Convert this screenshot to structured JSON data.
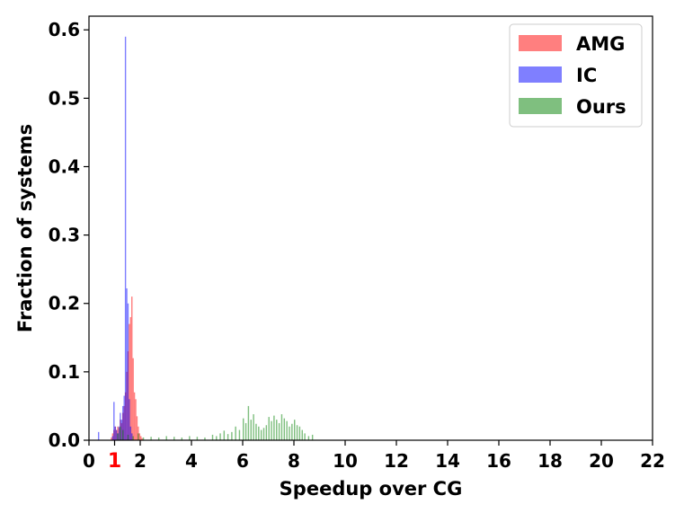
{
  "chart_data": {
    "type": "histogram",
    "title": "",
    "xlabel": "Speedup over CG",
    "ylabel": "Fraction of systems",
    "xlim": [
      0,
      22
    ],
    "ylim": [
      0,
      0.62
    ],
    "x_ticks": [
      "0",
      "1",
      "2",
      "4",
      "6",
      "8",
      "10",
      "12",
      "14",
      "16",
      "18",
      "20",
      "22"
    ],
    "highlight_tick": {
      "label": "1",
      "color": "#ff0000"
    },
    "y_ticks": [
      "0.0",
      "0.1",
      "0.2",
      "0.3",
      "0.4",
      "0.5",
      "0.6"
    ],
    "grid": false,
    "legend_position": "top-right",
    "series": [
      {
        "name": "AMG",
        "color": "#ff0000",
        "bins": [
          {
            "x": 0.85,
            "y": 0.004
          },
          {
            "x": 0.9,
            "y": 0.01
          },
          {
            "x": 0.95,
            "y": 0.015
          },
          {
            "x": 1.0,
            "y": 0.02
          },
          {
            "x": 1.05,
            "y": 0.015
          },
          {
            "x": 1.1,
            "y": 0.02
          },
          {
            "x": 1.15,
            "y": 0.018
          },
          {
            "x": 1.2,
            "y": 0.03
          },
          {
            "x": 1.25,
            "y": 0.025
          },
          {
            "x": 1.3,
            "y": 0.04
          },
          {
            "x": 1.35,
            "y": 0.05
          },
          {
            "x": 1.4,
            "y": 0.07
          },
          {
            "x": 1.45,
            "y": 0.1
          },
          {
            "x": 1.5,
            "y": 0.13
          },
          {
            "x": 1.55,
            "y": 0.17
          },
          {
            "x": 1.6,
            "y": 0.18
          },
          {
            "x": 1.65,
            "y": 0.21
          },
          {
            "x": 1.7,
            "y": 0.12
          },
          {
            "x": 1.75,
            "y": 0.07
          },
          {
            "x": 1.8,
            "y": 0.06
          },
          {
            "x": 1.85,
            "y": 0.035
          },
          {
            "x": 1.9,
            "y": 0.02
          },
          {
            "x": 1.95,
            "y": 0.01
          },
          {
            "x": 2.0,
            "y": 0.006
          },
          {
            "x": 2.05,
            "y": 0.003
          }
        ]
      },
      {
        "name": "IC",
        "color": "#0000ff",
        "bins": [
          {
            "x": 0.35,
            "y": 0.012
          },
          {
            "x": 0.9,
            "y": 0.006
          },
          {
            "x": 0.95,
            "y": 0.056
          },
          {
            "x": 1.0,
            "y": 0.02
          },
          {
            "x": 1.05,
            "y": 0.015
          },
          {
            "x": 1.1,
            "y": 0.01
          },
          {
            "x": 1.15,
            "y": 0.02
          },
          {
            "x": 1.2,
            "y": 0.04
          },
          {
            "x": 1.25,
            "y": 0.03
          },
          {
            "x": 1.3,
            "y": 0.05
          },
          {
            "x": 1.35,
            "y": 0.065
          },
          {
            "x": 1.4,
            "y": 0.59
          },
          {
            "x": 1.45,
            "y": 0.222
          },
          {
            "x": 1.5,
            "y": 0.2
          },
          {
            "x": 1.55,
            "y": 0.06
          },
          {
            "x": 1.6,
            "y": 0.02
          },
          {
            "x": 1.65,
            "y": 0.01
          }
        ]
      },
      {
        "name": "Ours",
        "color": "#008000",
        "bins": [
          {
            "x": 1.1,
            "y": 0.01
          },
          {
            "x": 1.2,
            "y": 0.02
          },
          {
            "x": 1.3,
            "y": 0.015
          },
          {
            "x": 1.5,
            "y": 0.008
          },
          {
            "x": 1.7,
            "y": 0.006
          },
          {
            "x": 1.9,
            "y": 0.01
          },
          {
            "x": 2.1,
            "y": 0.004
          },
          {
            "x": 2.4,
            "y": 0.005
          },
          {
            "x": 2.7,
            "y": 0.004
          },
          {
            "x": 3.0,
            "y": 0.006
          },
          {
            "x": 3.3,
            "y": 0.005
          },
          {
            "x": 3.6,
            "y": 0.004
          },
          {
            "x": 3.9,
            "y": 0.006
          },
          {
            "x": 4.2,
            "y": 0.005
          },
          {
            "x": 4.5,
            "y": 0.004
          },
          {
            "x": 4.8,
            "y": 0.008
          },
          {
            "x": 4.95,
            "y": 0.006
          },
          {
            "x": 5.1,
            "y": 0.01
          },
          {
            "x": 5.25,
            "y": 0.014
          },
          {
            "x": 5.4,
            "y": 0.009
          },
          {
            "x": 5.55,
            "y": 0.012
          },
          {
            "x": 5.7,
            "y": 0.02
          },
          {
            "x": 5.85,
            "y": 0.015
          },
          {
            "x": 6.0,
            "y": 0.032
          },
          {
            "x": 6.1,
            "y": 0.025
          },
          {
            "x": 6.2,
            "y": 0.05
          },
          {
            "x": 6.3,
            "y": 0.03
          },
          {
            "x": 6.4,
            "y": 0.038
          },
          {
            "x": 6.5,
            "y": 0.024
          },
          {
            "x": 6.6,
            "y": 0.02
          },
          {
            "x": 6.7,
            "y": 0.015
          },
          {
            "x": 6.8,
            "y": 0.018
          },
          {
            "x": 6.9,
            "y": 0.022
          },
          {
            "x": 7.0,
            "y": 0.034
          },
          {
            "x": 7.1,
            "y": 0.028
          },
          {
            "x": 7.2,
            "y": 0.036
          },
          {
            "x": 7.3,
            "y": 0.03
          },
          {
            "x": 7.4,
            "y": 0.025
          },
          {
            "x": 7.5,
            "y": 0.038
          },
          {
            "x": 7.6,
            "y": 0.032
          },
          {
            "x": 7.7,
            "y": 0.028
          },
          {
            "x": 7.8,
            "y": 0.02
          },
          {
            "x": 7.9,
            "y": 0.024
          },
          {
            "x": 8.0,
            "y": 0.03
          },
          {
            "x": 8.1,
            "y": 0.022
          },
          {
            "x": 8.2,
            "y": 0.02
          },
          {
            "x": 8.3,
            "y": 0.015
          },
          {
            "x": 8.4,
            "y": 0.01
          },
          {
            "x": 8.55,
            "y": 0.006
          },
          {
            "x": 8.7,
            "y": 0.008
          }
        ]
      }
    ]
  }
}
